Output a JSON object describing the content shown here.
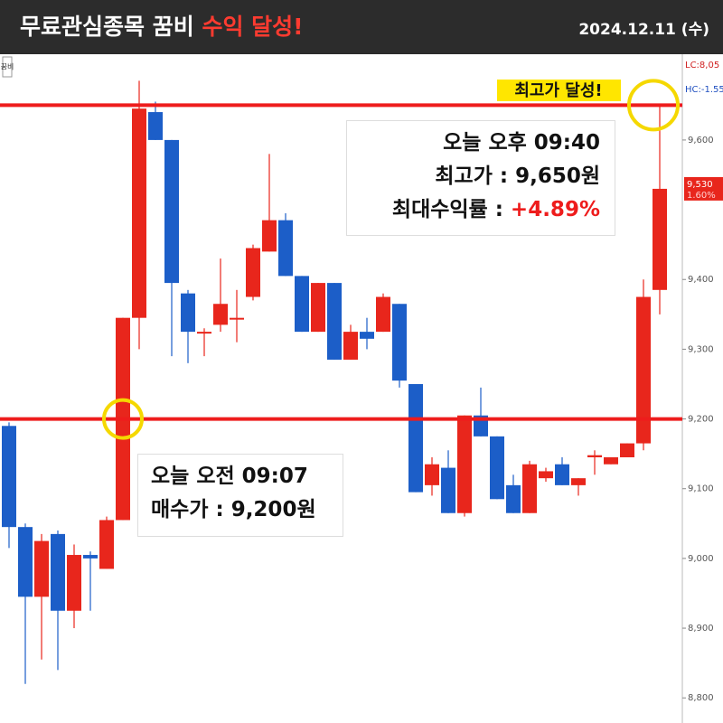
{
  "header": {
    "title": "무료관심종목 꿈비",
    "title_highlight": "수익 달성!",
    "date": "2024.12.11 (수)"
  },
  "chart_data": {
    "type": "candlestick",
    "tag": "꿈비",
    "categories": [
      null,
      null,
      null,
      null,
      null,
      null,
      null,
      null,
      null,
      null,
      null,
      null,
      null,
      null,
      null,
      null,
      null,
      null,
      null,
      null,
      null,
      null,
      null,
      null,
      null,
      null,
      null,
      null,
      null,
      null,
      null,
      null,
      null,
      null,
      null,
      null,
      null,
      null,
      null,
      null,
      null
    ],
    "open": [
      9190,
      9045,
      8945,
      9035,
      8925,
      9005,
      8985,
      9055,
      9345,
      9640,
      9600,
      9380,
      9325,
      9335,
      9345,
      9375,
      9440,
      9485,
      9405,
      9325,
      9395,
      9285,
      9325,
      9325,
      9365,
      9250,
      9105,
      9130,
      9065,
      9205,
      9175,
      9105,
      9065,
      9115,
      9135,
      9105,
      9145,
      9135,
      9145,
      9165,
      9385
    ],
    "high": [
      9195,
      9050,
      9035,
      9040,
      9020,
      9010,
      9060,
      9345,
      9685,
      9655,
      9600,
      9385,
      9330,
      9430,
      9385,
      9450,
      9580,
      9495,
      9405,
      9395,
      9395,
      9335,
      9345,
      9380,
      9365,
      9250,
      9145,
      9155,
      9205,
      9245,
      9175,
      9120,
      9140,
      9130,
      9145,
      9115,
      9155,
      9145,
      9165,
      9400,
      9650
    ],
    "low": [
      9015,
      8820,
      8855,
      8840,
      8900,
      8925,
      8985,
      9055,
      9300,
      9600,
      9290,
      9280,
      9290,
      9325,
      9310,
      9370,
      9440,
      9405,
      9325,
      9325,
      9285,
      9285,
      9300,
      9325,
      9245,
      9095,
      9090,
      9065,
      9060,
      9175,
      9085,
      9065,
      9065,
      9110,
      9105,
      9090,
      9120,
      9135,
      9145,
      9155,
      9350
    ],
    "close": [
      9045,
      8945,
      9025,
      8925,
      9005,
      9000,
      9055,
      9345,
      9645,
      9600,
      9395,
      9325,
      9325,
      9365,
      9345,
      9445,
      9485,
      9405,
      9325,
      9395,
      9285,
      9325,
      9315,
      9375,
      9255,
      9095,
      9135,
      9065,
      9205,
      9175,
      9085,
      9065,
      9135,
      9125,
      9105,
      9115,
      9148,
      9145,
      9165,
      9375,
      9530
    ],
    "up_color": "#e8261c",
    "down_color": "#1c5ec8",
    "ylim": [
      8764,
      9723
    ],
    "yticks": [
      {
        "value": 8800,
        "label": "8,800"
      },
      {
        "value": 8900,
        "label": "8,900"
      },
      {
        "value": 9000,
        "label": "9,000"
      },
      {
        "value": 9100,
        "label": "9,100"
      },
      {
        "value": 9200,
        "label": "9,200"
      },
      {
        "value": 9300,
        "label": "9,300"
      },
      {
        "value": 9400,
        "label": "9,400"
      },
      {
        "value": 9600,
        "label": "9,600"
      }
    ],
    "reference_lines": [
      9200,
      9650
    ],
    "reference_color": "#ee1c1c",
    "lc_label": "LC:8,05",
    "hc_label": "HC:-1.55",
    "last_price": {
      "value": 9530,
      "label": "9,530",
      "change_label": "1.60%"
    },
    "annotations": {
      "peak_tag": "최고가 달성!",
      "sell": {
        "time": "오늘 오후 09:40",
        "price": "최고가 : 9,650원",
        "return_label": "최대수익률 : ",
        "return_value": "+4.89%"
      },
      "buy": {
        "time": "오늘 오전 09:07",
        "price": "매수가 : 9,200원"
      }
    }
  }
}
